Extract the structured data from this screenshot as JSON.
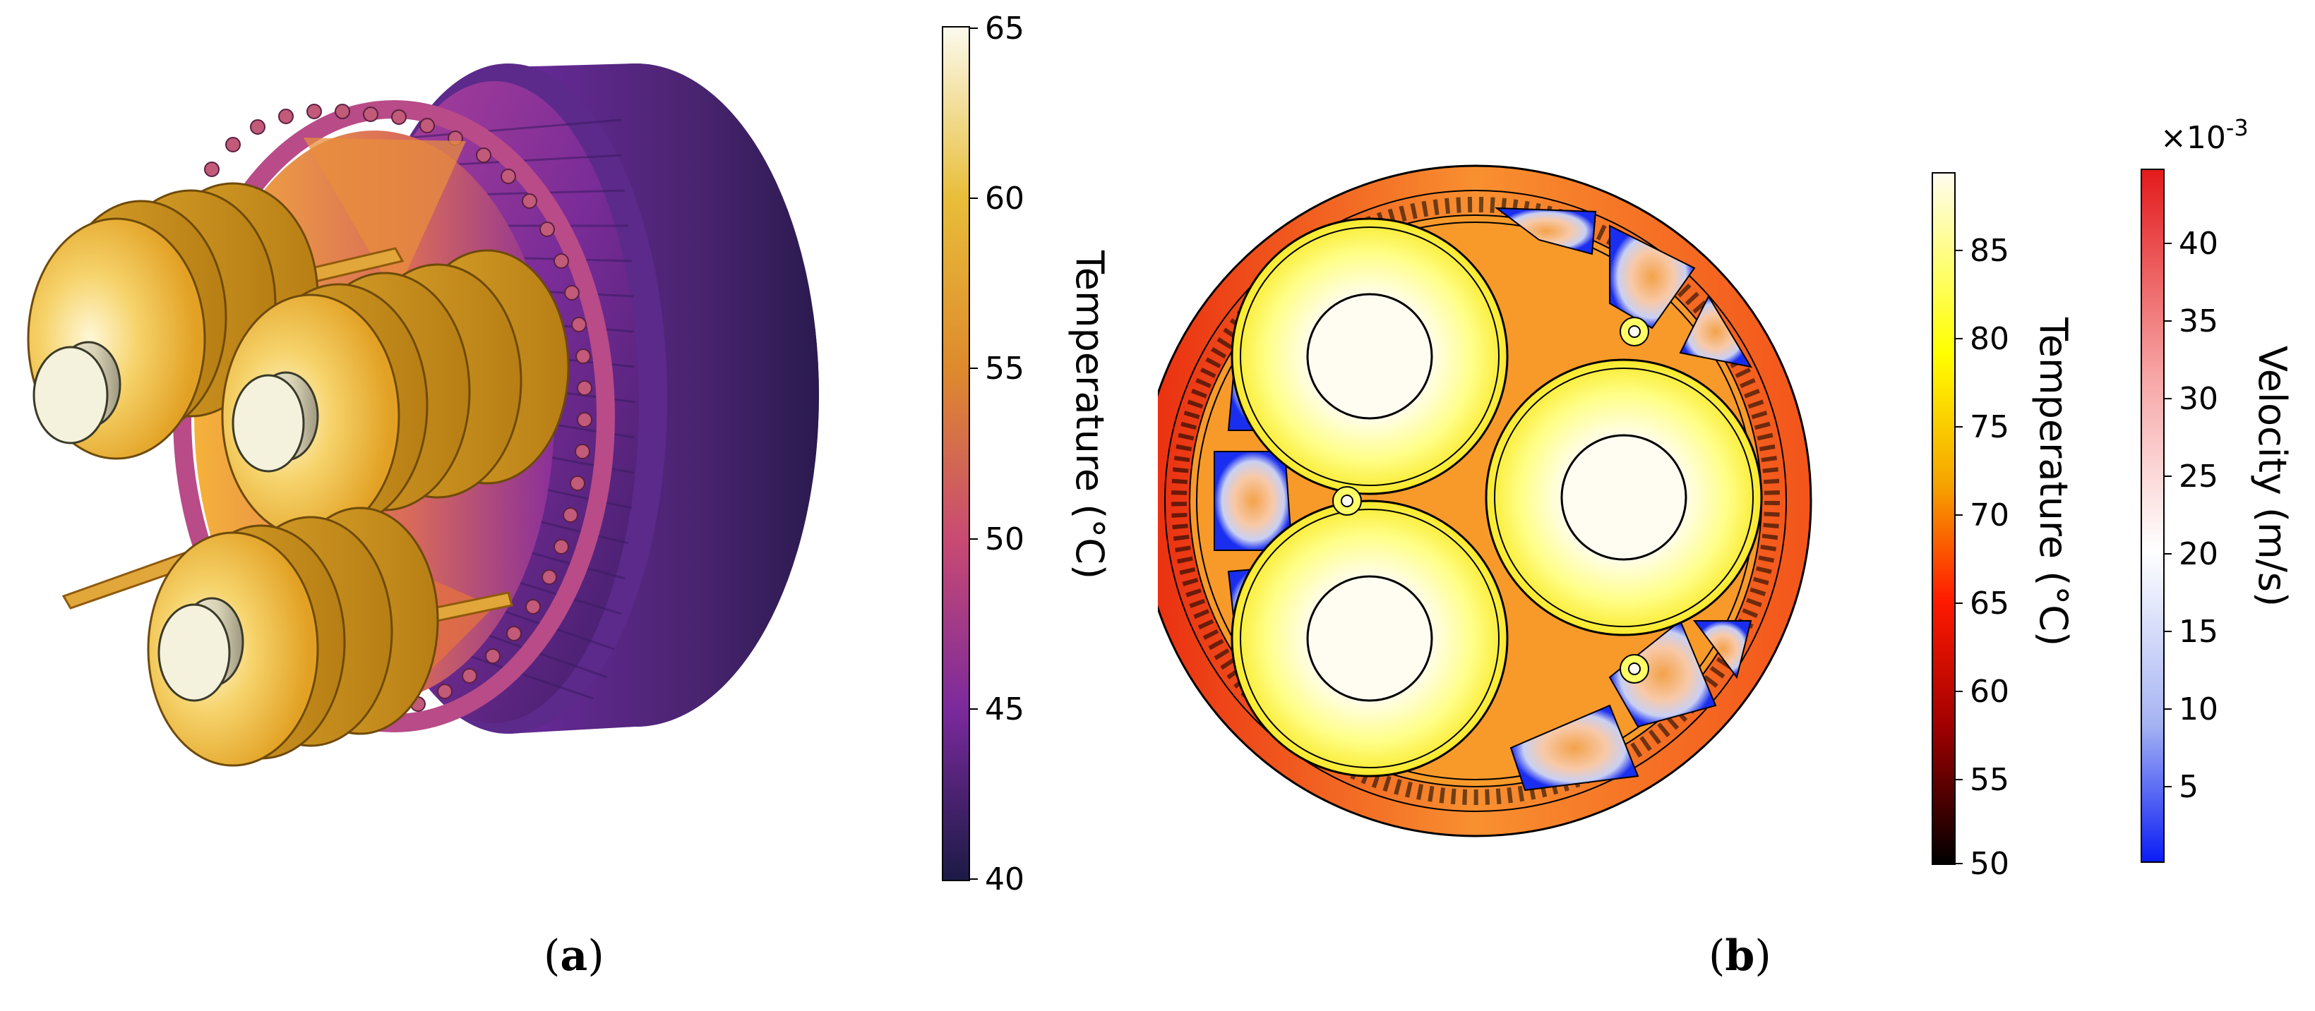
{
  "panel_a": {
    "caption": "a",
    "colorbar": {
      "label": "Temperature (°C)",
      "ticks": [
        "65",
        "60",
        "55",
        "50",
        "45",
        "40"
      ],
      "colors": [
        "#fcfaee",
        "#e8be39",
        "#de8a2c",
        "#c94a73",
        "#7b2a9c",
        "#1b1a45"
      ]
    }
  },
  "panel_b": {
    "caption": "b",
    "temperature_colorbar": {
      "label": "Temperature (°C)",
      "ticks": [
        "85",
        "80",
        "75",
        "70",
        "65",
        "60",
        "55",
        "50"
      ],
      "colors": [
        "#fffcef",
        "#ffff00",
        "#f6a400",
        "#ff1a00",
        "#a10000",
        "#000000"
      ]
    },
    "velocity_colorbar": {
      "label": "Velocity (m/s)",
      "exponent": "×10",
      "exponent_power": "-3",
      "ticks": [
        "40",
        "35",
        "30",
        "25",
        "20",
        "15",
        "10",
        "5"
      ],
      "colors": [
        "#e31a1c",
        "#f7a6a6",
        "#ffffff",
        "#a6b4f3",
        "#0a1cf5"
      ]
    }
  }
}
